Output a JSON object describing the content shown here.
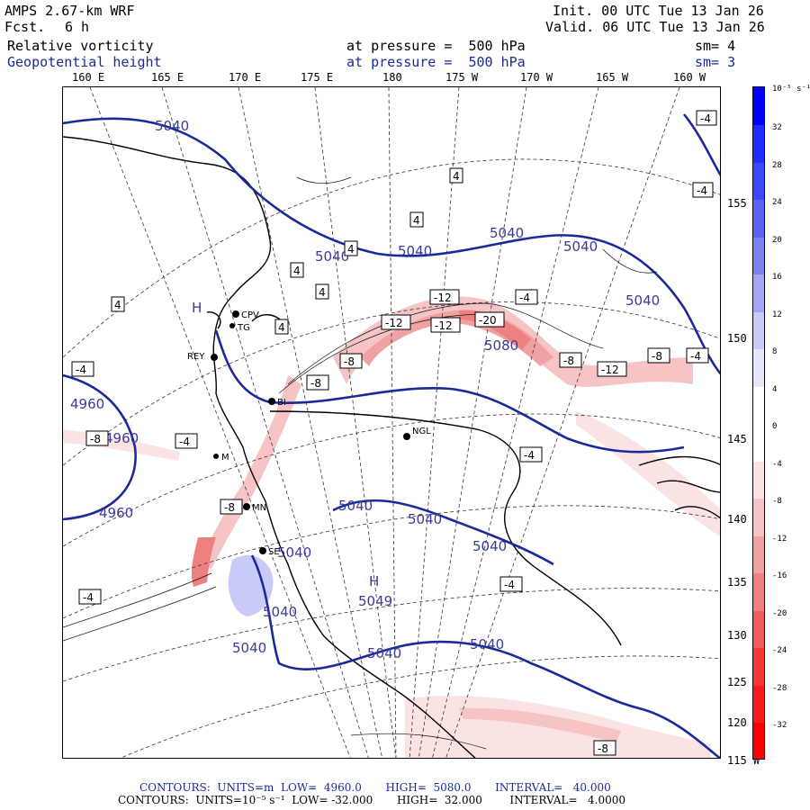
{
  "header": {
    "model": "AMPS 2.67-km WRF",
    "fcst_label": "Fcst.",
    "fcst_value": "6 h",
    "init": "Init. 00 UTC Tue 13 Jan 26",
    "valid": "Valid. 06 UTC Tue 13 Jan 26",
    "field1_name": "Relative vorticity",
    "field1_level": "at pressure =  500 hPa",
    "field1_sm": "sm= 4",
    "field2_name": "Geopotential height",
    "field2_level": "at pressure =  500 hPa",
    "field2_sm": "sm= 3"
  },
  "lon_labels": [
    "160 E",
    "165 E",
    "170 E",
    "175 E",
    "180",
    "175 W",
    "170 W",
    "165 W",
    "160 W"
  ],
  "lat_labels": [
    "155 W",
    "150 W",
    "145 W",
    "140 W",
    "135 W",
    "130 W",
    "125 W",
    "120 W",
    "115 W"
  ],
  "colorbar": {
    "unit": "10⁻⁵ s⁻¹",
    "ticks": [
      "32",
      "28",
      "24",
      "20",
      "16",
      "12",
      "8",
      "4",
      "0",
      "-4",
      "-8",
      "-12",
      "-16",
      "-20",
      "-24",
      "-28",
      "-32"
    ],
    "colors_top_to_bottom": [
      "#0000ff",
      "#1f2dff",
      "#3b48ff",
      "#5a63f2",
      "#7c82f0",
      "#a3a7f3",
      "#c8caf7",
      "#e6e6fb",
      "#ffffff",
      "#ffffff",
      "#fbe3e3",
      "#f6c4c4",
      "#f0a2a2",
      "#ee8080",
      "#f05c5c",
      "#f43838",
      "#f71a1a",
      "#ff0000"
    ]
  },
  "stations": [
    "CPV",
    "TG",
    "REY",
    "BI",
    "NGL",
    "MN",
    "SE",
    "M"
  ],
  "height_labels": [
    "5040",
    "5040",
    "5040",
    "5040",
    "5040",
    "5040",
    "5040",
    "5040",
    "5040",
    "5040",
    "5040",
    "5040",
    "5040",
    "5040",
    "4960",
    "4960",
    "4960",
    "5080",
    "5049",
    "H",
    "H"
  ],
  "vort_labels": [
    "-4",
    "-4",
    "4",
    "4",
    "4",
    "4",
    "4",
    "4",
    "4",
    "-12",
    "-12",
    "-12",
    "-20",
    "-8",
    "-8",
    "-12",
    "-8",
    "-4",
    "-4",
    "-8",
    "-4",
    "-8",
    "-8",
    "-4",
    "-4",
    "-4",
    "-4",
    "-8"
  ],
  "footer": {
    "line1": "CONTOURS:  UNITS=m  LOW=  4960.0       HIGH=  5080.0       INTERVAL=   40.000",
    "line2": "CONTOURS:  UNITS=10⁻⁵ s⁻¹  LOW= -32.000       HIGH=  32.000        INTERVAL=   4.0000"
  },
  "colors": {
    "height_contour": "#1a2a9a",
    "vort_positive": "#3b48ff",
    "vort_negative": "#f04040"
  }
}
